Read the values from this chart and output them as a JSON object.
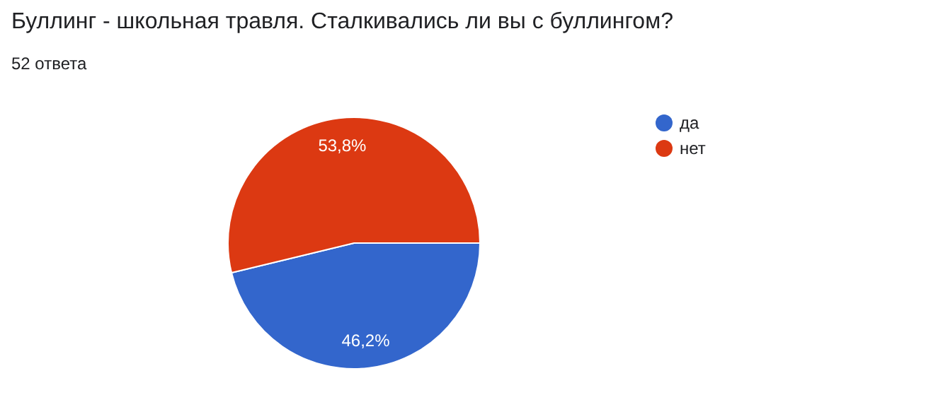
{
  "chart_data": {
    "type": "pie",
    "title": "Буллинг - школьная травля. Сталкивались ли вы с буллингом?",
    "subtitle": "52 ответа",
    "categories": [
      "да",
      "нет"
    ],
    "values": [
      46.2,
      53.8
    ],
    "value_labels": [
      "46,2%",
      "53,8%"
    ],
    "colors": [
      "#3366cc",
      "#dc3912"
    ],
    "legend": "right"
  }
}
